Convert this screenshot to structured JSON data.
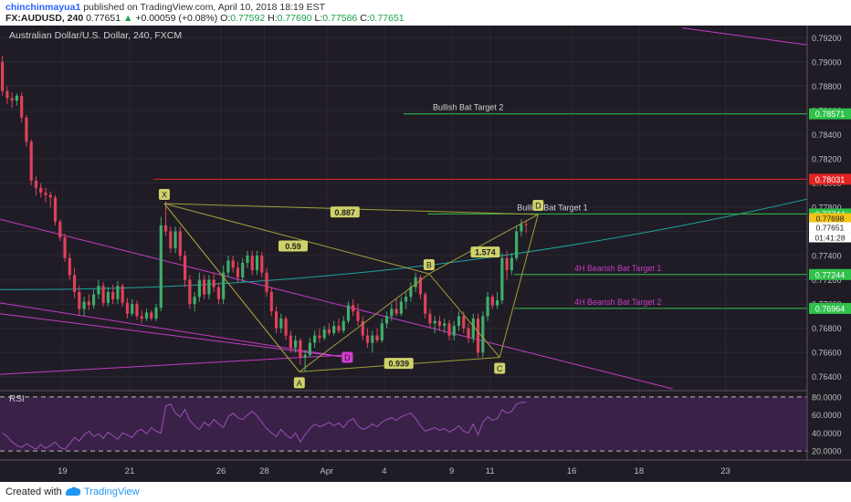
{
  "header": {
    "username": "chinchinmayua1",
    "published": "published on TradingView.com, April 10, 2018 18:19 EST",
    "symbol": "FX:AUDUSD, 240",
    "last": "0.77651",
    "change_arrow": "▲",
    "change": "+0.00059 (+0.08%)",
    "o_label": "O:",
    "o_value": "0.77592",
    "h_label": "H:",
    "h_value": "0.77690",
    "l_label": "L:",
    "l_value": "0.77586",
    "c_label": "C:",
    "c_value": "0.77651"
  },
  "footer": {
    "created": "Created with",
    "brand": "TradingView"
  },
  "colors": {
    "background": "#201c26",
    "bull": "#3fae6a",
    "bear": "#e0425a",
    "green_line": "#2ec24a",
    "red_line": "#e02424",
    "magenta": "#c43bc4",
    "teal": "#1aa59a",
    "olive": "#9ea03a",
    "label_bg": "#cfd26a"
  },
  "chart_data": {
    "type": "candlestick",
    "title": "Australian Dollar/U.S. Dollar, 240, FXCM",
    "ylim": [
      0.763,
      0.793
    ],
    "y_ticks": [
      "0.79200",
      "0.79000",
      "0.78800",
      "0.78600",
      "0.78400",
      "0.78200",
      "0.78000",
      "0.77800",
      "0.77600",
      "0.77400",
      "0.77200",
      "0.77000",
      "0.76800",
      "0.76600",
      "0.76400"
    ],
    "y_tick_values": [
      0.792,
      0.79,
      0.788,
      0.786,
      0.784,
      0.782,
      0.78,
      0.778,
      0.776,
      0.774,
      0.772,
      0.77,
      0.768,
      0.766,
      0.764
    ],
    "x_ticks": [
      "19",
      "21",
      "26",
      "28",
      "Apr",
      "4",
      "9",
      "11",
      "16",
      "18",
      "23"
    ],
    "time_range": [
      0,
      168
    ],
    "x_tick_times": [
      13,
      27,
      46,
      55,
      68,
      80,
      94,
      102,
      119,
      133,
      151
    ],
    "candles": [
      {
        "t": 0.5,
        "o": 0.79,
        "h": 0.7905,
        "l": 0.7872,
        "c": 0.7876
      },
      {
        "t": 1.5,
        "o": 0.7876,
        "h": 0.788,
        "l": 0.7865,
        "c": 0.787
      },
      {
        "t": 2.5,
        "o": 0.787,
        "h": 0.7875,
        "l": 0.7862,
        "c": 0.7868
      },
      {
        "t": 3.5,
        "o": 0.7868,
        "h": 0.7874,
        "l": 0.7864,
        "c": 0.7872
      },
      {
        "t": 4.5,
        "o": 0.7872,
        "h": 0.7875,
        "l": 0.785,
        "c": 0.7854
      },
      {
        "t": 5.5,
        "o": 0.7854,
        "h": 0.7856,
        "l": 0.783,
        "c": 0.7834
      },
      {
        "t": 6.5,
        "o": 0.7834,
        "h": 0.7836,
        "l": 0.7798,
        "c": 0.7802
      },
      {
        "t": 7.5,
        "o": 0.7802,
        "h": 0.7806,
        "l": 0.779,
        "c": 0.7796
      },
      {
        "t": 8.5,
        "o": 0.7796,
        "h": 0.78,
        "l": 0.7788,
        "c": 0.7792
      },
      {
        "t": 9.5,
        "o": 0.7792,
        "h": 0.7796,
        "l": 0.7784,
        "c": 0.779
      },
      {
        "t": 10.5,
        "o": 0.779,
        "h": 0.7793,
        "l": 0.778,
        "c": 0.7788
      },
      {
        "t": 11.5,
        "o": 0.7788,
        "h": 0.779,
        "l": 0.7765,
        "c": 0.7768
      },
      {
        "t": 12.5,
        "o": 0.7768,
        "h": 0.777,
        "l": 0.7752,
        "c": 0.7755
      },
      {
        "t": 13.5,
        "o": 0.7755,
        "h": 0.7758,
        "l": 0.7735,
        "c": 0.7738
      },
      {
        "t": 14.5,
        "o": 0.7738,
        "h": 0.7742,
        "l": 0.772,
        "c": 0.7724
      },
      {
        "t": 15.5,
        "o": 0.7724,
        "h": 0.773,
        "l": 0.7705,
        "c": 0.771
      },
      {
        "t": 16.5,
        "o": 0.771,
        "h": 0.7715,
        "l": 0.769,
        "c": 0.7696
      },
      {
        "t": 17.5,
        "o": 0.7696,
        "h": 0.7706,
        "l": 0.769,
        "c": 0.7702
      },
      {
        "t": 18.5,
        "o": 0.7702,
        "h": 0.7708,
        "l": 0.7695,
        "c": 0.7699
      },
      {
        "t": 19.5,
        "o": 0.7699,
        "h": 0.7712,
        "l": 0.7696,
        "c": 0.7708
      },
      {
        "t": 20.5,
        "o": 0.7708,
        "h": 0.772,
        "l": 0.7704,
        "c": 0.7715
      },
      {
        "t": 21.5,
        "o": 0.7715,
        "h": 0.7718,
        "l": 0.7698,
        "c": 0.7701
      },
      {
        "t": 22.5,
        "o": 0.7701,
        "h": 0.7714,
        "l": 0.7698,
        "c": 0.771
      },
      {
        "t": 23.5,
        "o": 0.771,
        "h": 0.7716,
        "l": 0.77,
        "c": 0.7704
      },
      {
        "t": 24.5,
        "o": 0.7704,
        "h": 0.7719,
        "l": 0.77,
        "c": 0.7715
      },
      {
        "t": 25.5,
        "o": 0.7715,
        "h": 0.7717,
        "l": 0.7698,
        "c": 0.7701
      },
      {
        "t": 26.5,
        "o": 0.7701,
        "h": 0.7705,
        "l": 0.7688,
        "c": 0.7692
      },
      {
        "t": 27.5,
        "o": 0.7692,
        "h": 0.7704,
        "l": 0.769,
        "c": 0.77
      },
      {
        "t": 28.5,
        "o": 0.77,
        "h": 0.7703,
        "l": 0.7687,
        "c": 0.769
      },
      {
        "t": 29.5,
        "o": 0.769,
        "h": 0.7695,
        "l": 0.7684,
        "c": 0.7688
      },
      {
        "t": 30.5,
        "o": 0.7688,
        "h": 0.7696,
        "l": 0.7686,
        "c": 0.7693
      },
      {
        "t": 31.5,
        "o": 0.7693,
        "h": 0.7695,
        "l": 0.7686,
        "c": 0.7688
      },
      {
        "t": 32.5,
        "o": 0.7688,
        "h": 0.77,
        "l": 0.7686,
        "c": 0.7697
      },
      {
        "t": 33.5,
        "o": 0.7697,
        "h": 0.7772,
        "l": 0.7694,
        "c": 0.7765
      },
      {
        "t": 34.5,
        "o": 0.7765,
        "h": 0.7785,
        "l": 0.7756,
        "c": 0.776
      },
      {
        "t": 35.5,
        "o": 0.776,
        "h": 0.7764,
        "l": 0.7742,
        "c": 0.7746
      },
      {
        "t": 36.5,
        "o": 0.7746,
        "h": 0.7764,
        "l": 0.7742,
        "c": 0.776
      },
      {
        "t": 37.5,
        "o": 0.776,
        "h": 0.7764,
        "l": 0.7736,
        "c": 0.774
      },
      {
        "t": 38.5,
        "o": 0.774,
        "h": 0.7744,
        "l": 0.7714,
        "c": 0.772
      },
      {
        "t": 39.5,
        "o": 0.772,
        "h": 0.7724,
        "l": 0.7696,
        "c": 0.77
      },
      {
        "t": 40.5,
        "o": 0.77,
        "h": 0.771,
        "l": 0.7694,
        "c": 0.7706
      },
      {
        "t": 41.5,
        "o": 0.7706,
        "h": 0.7726,
        "l": 0.7702,
        "c": 0.772
      },
      {
        "t": 42.5,
        "o": 0.772,
        "h": 0.7724,
        "l": 0.7704,
        "c": 0.7708
      },
      {
        "t": 43.5,
        "o": 0.7708,
        "h": 0.7724,
        "l": 0.7704,
        "c": 0.772
      },
      {
        "t": 44.5,
        "o": 0.772,
        "h": 0.7726,
        "l": 0.771,
        "c": 0.7714
      },
      {
        "t": 45.5,
        "o": 0.7714,
        "h": 0.7718,
        "l": 0.77,
        "c": 0.7704
      },
      {
        "t": 46.5,
        "o": 0.7704,
        "h": 0.7732,
        "l": 0.77,
        "c": 0.7726
      },
      {
        "t": 47.5,
        "o": 0.7726,
        "h": 0.774,
        "l": 0.7722,
        "c": 0.7736
      },
      {
        "t": 48.5,
        "o": 0.7736,
        "h": 0.774,
        "l": 0.7726,
        "c": 0.773
      },
      {
        "t": 49.5,
        "o": 0.773,
        "h": 0.7735,
        "l": 0.7718,
        "c": 0.7722
      },
      {
        "t": 50.5,
        "o": 0.7722,
        "h": 0.7738,
        "l": 0.7718,
        "c": 0.7734
      },
      {
        "t": 51.5,
        "o": 0.7734,
        "h": 0.7744,
        "l": 0.773,
        "c": 0.774
      },
      {
        "t": 52.5,
        "o": 0.774,
        "h": 0.7744,
        "l": 0.7724,
        "c": 0.7728
      },
      {
        "t": 53.5,
        "o": 0.7728,
        "h": 0.7744,
        "l": 0.7724,
        "c": 0.774
      },
      {
        "t": 54.5,
        "o": 0.774,
        "h": 0.7743,
        "l": 0.7722,
        "c": 0.7726
      },
      {
        "t": 55.5,
        "o": 0.7726,
        "h": 0.773,
        "l": 0.7706,
        "c": 0.771
      },
      {
        "t": 56.5,
        "o": 0.771,
        "h": 0.7714,
        "l": 0.769,
        "c": 0.7694
      },
      {
        "t": 57.5,
        "o": 0.7694,
        "h": 0.7698,
        "l": 0.7676,
        "c": 0.768
      },
      {
        "t": 58.5,
        "o": 0.768,
        "h": 0.7692,
        "l": 0.7676,
        "c": 0.7688
      },
      {
        "t": 59.5,
        "o": 0.7688,
        "h": 0.769,
        "l": 0.767,
        "c": 0.7674
      },
      {
        "t": 60.5,
        "o": 0.7674,
        "h": 0.7678,
        "l": 0.766,
        "c": 0.7664
      },
      {
        "t": 61.5,
        "o": 0.7664,
        "h": 0.7674,
        "l": 0.766,
        "c": 0.767
      },
      {
        "t": 62.5,
        "o": 0.767,
        "h": 0.7672,
        "l": 0.765,
        "c": 0.7656
      },
      {
        "t": 63.5,
        "o": 0.7656,
        "h": 0.7662,
        "l": 0.7644,
        "c": 0.7658
      },
      {
        "t": 64.5,
        "o": 0.7658,
        "h": 0.7672,
        "l": 0.7656,
        "c": 0.7668
      },
      {
        "t": 65.5,
        "o": 0.7668,
        "h": 0.7678,
        "l": 0.7664,
        "c": 0.7674
      },
      {
        "t": 66.5,
        "o": 0.7674,
        "h": 0.768,
        "l": 0.7668,
        "c": 0.7672
      },
      {
        "t": 67.5,
        "o": 0.7672,
        "h": 0.7682,
        "l": 0.767,
        "c": 0.7679
      },
      {
        "t": 68.5,
        "o": 0.7679,
        "h": 0.7684,
        "l": 0.7674,
        "c": 0.7676
      },
      {
        "t": 69.5,
        "o": 0.7676,
        "h": 0.7686,
        "l": 0.7674,
        "c": 0.7682
      },
      {
        "t": 70.5,
        "o": 0.7682,
        "h": 0.7688,
        "l": 0.7676,
        "c": 0.7678
      },
      {
        "t": 71.5,
        "o": 0.7678,
        "h": 0.769,
        "l": 0.7676,
        "c": 0.7686
      },
      {
        "t": 72.5,
        "o": 0.7686,
        "h": 0.7702,
        "l": 0.7684,
        "c": 0.7699
      },
      {
        "t": 73.5,
        "o": 0.7699,
        "h": 0.7704,
        "l": 0.769,
        "c": 0.7694
      },
      {
        "t": 74.5,
        "o": 0.7694,
        "h": 0.77,
        "l": 0.7682,
        "c": 0.7686
      },
      {
        "t": 75.5,
        "o": 0.7686,
        "h": 0.769,
        "l": 0.767,
        "c": 0.7674
      },
      {
        "t": 76.5,
        "o": 0.7674,
        "h": 0.768,
        "l": 0.7664,
        "c": 0.7668
      },
      {
        "t": 77.5,
        "o": 0.7668,
        "h": 0.7678,
        "l": 0.766,
        "c": 0.7674
      },
      {
        "t": 78.5,
        "o": 0.7674,
        "h": 0.768,
        "l": 0.7668,
        "c": 0.767
      },
      {
        "t": 79.5,
        "o": 0.767,
        "h": 0.7688,
        "l": 0.7668,
        "c": 0.7684
      },
      {
        "t": 80.5,
        "o": 0.7684,
        "h": 0.7694,
        "l": 0.768,
        "c": 0.769
      },
      {
        "t": 81.5,
        "o": 0.769,
        "h": 0.77,
        "l": 0.7686,
        "c": 0.7696
      },
      {
        "t": 82.5,
        "o": 0.7696,
        "h": 0.7704,
        "l": 0.769,
        "c": 0.7692
      },
      {
        "t": 83.5,
        "o": 0.7692,
        "h": 0.7706,
        "l": 0.769,
        "c": 0.7702
      },
      {
        "t": 84.5,
        "o": 0.7702,
        "h": 0.771,
        "l": 0.7696,
        "c": 0.7706
      },
      {
        "t": 85.5,
        "o": 0.7706,
        "h": 0.7718,
        "l": 0.7702,
        "c": 0.7714
      },
      {
        "t": 86.5,
        "o": 0.7714,
        "h": 0.7726,
        "l": 0.771,
        "c": 0.7722
      },
      {
        "t": 87.5,
        "o": 0.7722,
        "h": 0.7724,
        "l": 0.7704,
        "c": 0.7708
      },
      {
        "t": 88.5,
        "o": 0.7708,
        "h": 0.771,
        "l": 0.7688,
        "c": 0.7692
      },
      {
        "t": 89.5,
        "o": 0.7692,
        "h": 0.7696,
        "l": 0.768,
        "c": 0.7684
      },
      {
        "t": 90.5,
        "o": 0.7684,
        "h": 0.769,
        "l": 0.7676,
        "c": 0.7686
      },
      {
        "t": 91.5,
        "o": 0.7686,
        "h": 0.769,
        "l": 0.7678,
        "c": 0.7682
      },
      {
        "t": 92.5,
        "o": 0.7682,
        "h": 0.7688,
        "l": 0.7676,
        "c": 0.7684
      },
      {
        "t": 93.5,
        "o": 0.7684,
        "h": 0.7687,
        "l": 0.767,
        "c": 0.7674
      },
      {
        "t": 94.5,
        "o": 0.7674,
        "h": 0.7686,
        "l": 0.767,
        "c": 0.7682
      },
      {
        "t": 95.5,
        "o": 0.7682,
        "h": 0.7694,
        "l": 0.7678,
        "c": 0.769
      },
      {
        "t": 96.5,
        "o": 0.769,
        "h": 0.7694,
        "l": 0.7676,
        "c": 0.768
      },
      {
        "t": 97.5,
        "o": 0.768,
        "h": 0.7684,
        "l": 0.7668,
        "c": 0.7672
      },
      {
        "t": 98.5,
        "o": 0.7672,
        "h": 0.7692,
        "l": 0.7668,
        "c": 0.7688
      },
      {
        "t": 99.5,
        "o": 0.7688,
        "h": 0.7692,
        "l": 0.7656,
        "c": 0.766
      },
      {
        "t": 100.5,
        "o": 0.766,
        "h": 0.7694,
        "l": 0.7656,
        "c": 0.769
      },
      {
        "t": 101.5,
        "o": 0.769,
        "h": 0.771,
        "l": 0.7686,
        "c": 0.7706
      },
      {
        "t": 102.5,
        "o": 0.7706,
        "h": 0.7708,
        "l": 0.7696,
        "c": 0.7699
      },
      {
        "t": 103.5,
        "o": 0.7699,
        "h": 0.771,
        "l": 0.7696,
        "c": 0.7703
      },
      {
        "t": 104.5,
        "o": 0.7703,
        "h": 0.7742,
        "l": 0.77,
        "c": 0.7738
      },
      {
        "t": 105.5,
        "o": 0.7738,
        "h": 0.7744,
        "l": 0.772,
        "c": 0.7728
      },
      {
        "t": 106.5,
        "o": 0.7728,
        "h": 0.7742,
        "l": 0.7724,
        "c": 0.7738
      },
      {
        "t": 107.5,
        "o": 0.7738,
        "h": 0.7764,
        "l": 0.7736,
        "c": 0.776
      },
      {
        "t": 108.5,
        "o": 0.776,
        "h": 0.777,
        "l": 0.7756,
        "c": 0.7766
      },
      {
        "t": 109.5,
        "o": 0.7766,
        "h": 0.7769,
        "l": 0.77586,
        "c": 0.77651
      }
    ],
    "patterns": {
      "bat_points": [
        {
          "label": "X",
          "t": 34.2,
          "v": 0.7783
        },
        {
          "label": "A",
          "t": 62.3,
          "v": 0.7644
        },
        {
          "label": "B",
          "t": 89.3,
          "v": 0.7725
        },
        {
          "label": "C",
          "t": 104.0,
          "v": 0.7656
        },
        {
          "label": "D",
          "t": 112.0,
          "v": 0.7774
        }
      ],
      "ratios": [
        {
          "text": "0.887",
          "t": 71.8,
          "v": 0.7776
        },
        {
          "text": "0.59",
          "t": 61.0,
          "v": 0.7748
        },
        {
          "text": "1.574",
          "t": 101.0,
          "v": 0.7743
        },
        {
          "text": "0.939",
          "t": 83.0,
          "v": 0.7651
        }
      ],
      "bearish_d": {
        "label": "D",
        "t": 72.3,
        "v": 0.7656
      },
      "levels": [
        {
          "text": "Bullish Bat Target 2",
          "value": 0.78571,
          "badge": "0.78571",
          "t0": 84,
          "color": "green"
        },
        {
          "text": "",
          "value": 0.78031,
          "badge": "0.78031",
          "t0": 32,
          "color": "red"
        },
        {
          "text": "Bullish Bat  Target 1",
          "value": 0.77744,
          "badge": "0.77744",
          "t0": 89,
          "color": "green"
        },
        {
          "text": "4H Bearish Bat Target 1",
          "value": 0.77244,
          "badge": "0.77244",
          "t0": 107,
          "color": "green"
        },
        {
          "text": "4H Bearish Bat Target 2",
          "value": 0.76964,
          "badge": "0.76964",
          "t0": 107,
          "color": "green"
        }
      ],
      "price_badges": [
        {
          "text": "0.77698",
          "value": 0.77698,
          "color": "#f0c419"
        },
        {
          "text": "0.77651",
          "value": 0.77651,
          "color": "#ffffff"
        },
        {
          "text": "01:41:28",
          "value": 0.7756,
          "color": "#ffffff"
        }
      ]
    },
    "rsi": {
      "label": "RSI",
      "ylim": [
        10,
        85
      ],
      "y_ticks": [
        "80.0000",
        "60.0000",
        "40.0000",
        "20.0000"
      ],
      "y_tick_values": [
        80,
        60,
        40,
        20
      ],
      "values": [
        40,
        36,
        30,
        26,
        24,
        28,
        25,
        22,
        27,
        23,
        26,
        30,
        24,
        22,
        28,
        35,
        31,
        38,
        42,
        36,
        39,
        34,
        41,
        37,
        33,
        40,
        38,
        35,
        42,
        44,
        39,
        46,
        42,
        40,
        70,
        72,
        62,
        58,
        66,
        54,
        48,
        44,
        52,
        48,
        55,
        50,
        46,
        58,
        62,
        57,
        55,
        60,
        64,
        59,
        52,
        45,
        40,
        36,
        44,
        38,
        34,
        40,
        30,
        38,
        45,
        50,
        47,
        49,
        52,
        48,
        51,
        46,
        53,
        56,
        48,
        44,
        46,
        50,
        47,
        52,
        55,
        57,
        54,
        58,
        60,
        62,
        56,
        48,
        42,
        44,
        46,
        43,
        45,
        41,
        44,
        48,
        42,
        40,
        50,
        38,
        52,
        58,
        54,
        56,
        66,
        62,
        64,
        72,
        74,
        74
      ]
    }
  }
}
